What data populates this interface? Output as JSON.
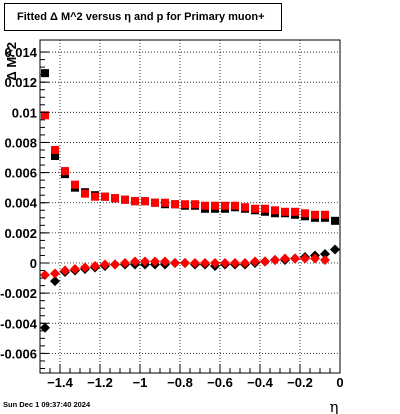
{
  "chart_data": {
    "type": "scatter",
    "title": "Fitted Δ M^2 versus η and p for Primary muon+",
    "xlabel": "η",
    "ylabel": "Δ M^2",
    "xlim": [
      -1.5,
      0.0
    ],
    "ylim": [
      -0.0073,
      0.0148
    ],
    "x_ticks": [
      -1.4,
      -1.2,
      -1.0,
      -0.8,
      -0.6,
      -0.4,
      -0.2,
      0
    ],
    "x_tick_labels": [
      "−1.4",
      "−1.2",
      "−1",
      "−0.8",
      "−0.6",
      "−0.4",
      "−0.2",
      "0"
    ],
    "y_ticks": [
      -0.006,
      -0.004,
      -0.002,
      0,
      0.002,
      0.004,
      0.006,
      0.008,
      0.01,
      0.012,
      0.014
    ],
    "y_tick_labels": [
      "-0.006",
      "-0.004",
      "-0.002",
      "0",
      "0.002",
      "0.004",
      "0.006",
      "0.008",
      "0.01",
      "0.012",
      "0.014"
    ],
    "grid": true,
    "series": [
      {
        "marker": "square",
        "color": "#000000",
        "x": [
          -1.475,
          -1.425,
          -1.375,
          -1.325,
          -1.275,
          -1.225,
          -1.175,
          -1.125,
          -1.075,
          -1.025,
          -0.975,
          -0.925,
          -0.875,
          -0.825,
          -0.775,
          -0.725,
          -0.675,
          -0.625,
          -0.575,
          -0.525,
          -0.475,
          -0.425,
          -0.375,
          -0.325,
          -0.275,
          -0.225,
          -0.175,
          -0.125,
          -0.075,
          -0.025
        ],
        "y": [
          0.0126,
          0.0071,
          0.0059,
          0.005,
          0.0047,
          0.0045,
          0.0044,
          0.0043,
          0.0042,
          0.0041,
          0.0041,
          0.004,
          0.0039,
          0.0039,
          0.0038,
          0.0038,
          0.0036,
          0.0036,
          0.0036,
          0.0037,
          0.0036,
          0.0035,
          0.0034,
          0.0033,
          0.0033,
          0.0032,
          0.0031,
          0.003,
          0.003,
          0.0028
        ]
      },
      {
        "marker": "square",
        "color": "#ff0000",
        "x": [
          -1.475,
          -1.425,
          -1.375,
          -1.325,
          -1.275,
          -1.225,
          -1.175,
          -1.125,
          -1.075,
          -1.025,
          -0.975,
          -0.925,
          -0.875,
          -0.825,
          -0.775,
          -0.725,
          -0.675,
          -0.625,
          -0.575,
          -0.525,
          -0.475,
          -0.425,
          -0.375,
          -0.325,
          -0.275,
          -0.225,
          -0.175,
          -0.125,
          -0.075
        ],
        "y": [
          0.0098,
          0.0075,
          0.0061,
          0.0052,
          0.0046,
          0.0044,
          0.0044,
          0.0043,
          0.0042,
          0.0041,
          0.0041,
          0.004,
          0.004,
          0.0039,
          0.0039,
          0.0039,
          0.0038,
          0.0038,
          0.0038,
          0.0038,
          0.0037,
          0.0036,
          0.0036,
          0.0035,
          0.0034,
          0.0034,
          0.0033,
          0.0032,
          0.0032
        ]
      },
      {
        "marker": "diamond",
        "color": "#000000",
        "x": [
          -1.475,
          -1.425,
          -1.375,
          -1.325,
          -1.275,
          -1.225,
          -1.175,
          -1.125,
          -1.075,
          -1.025,
          -0.975,
          -0.925,
          -0.875,
          -0.825,
          -0.775,
          -0.725,
          -0.675,
          -0.625,
          -0.575,
          -0.525,
          -0.475,
          -0.425,
          -0.375,
          -0.325,
          -0.275,
          -0.225,
          -0.175,
          -0.125,
          -0.075,
          -0.025
        ],
        "y": [
          -0.0043,
          -0.0012,
          -0.0006,
          -0.0005,
          -0.0004,
          -0.0003,
          -0.0002,
          -0.0001,
          -0.0001,
          -0.0001,
          -0.0001,
          -0.0001,
          -0.0001,
          0.0,
          0.0,
          -0.0001,
          -0.0001,
          -0.0002,
          -0.0001,
          -0.0001,
          -0.0001,
          0.0,
          0.0001,
          0.0002,
          0.0002,
          0.0003,
          0.0004,
          0.0005,
          0.0006,
          0.0009
        ]
      },
      {
        "marker": "diamond",
        "color": "#ff0000",
        "x": [
          -1.475,
          -1.425,
          -1.375,
          -1.325,
          -1.275,
          -1.225,
          -1.175,
          -1.125,
          -1.075,
          -1.025,
          -0.975,
          -0.925,
          -0.875,
          -0.825,
          -0.775,
          -0.725,
          -0.675,
          -0.625,
          -0.575,
          -0.525,
          -0.475,
          -0.425,
          -0.375,
          -0.325,
          -0.275,
          -0.225,
          -0.175,
          -0.125,
          -0.075
        ],
        "y": [
          -0.0008,
          -0.0007,
          -0.0005,
          -0.0004,
          -0.0003,
          -0.0002,
          -0.0001,
          -0.0001,
          0.0,
          0.0001,
          0.0001,
          0.0001,
          0.0001,
          0.0,
          0.0,
          0.0,
          0.0,
          0.0,
          0.0,
          0.0,
          0.0,
          0.0001,
          0.0001,
          0.0002,
          0.0003,
          0.0003,
          0.0003,
          0.0003,
          0.0002
        ]
      }
    ]
  },
  "footer": {
    "timestamp": "Sun Dec  1 09:37:40 2024"
  }
}
